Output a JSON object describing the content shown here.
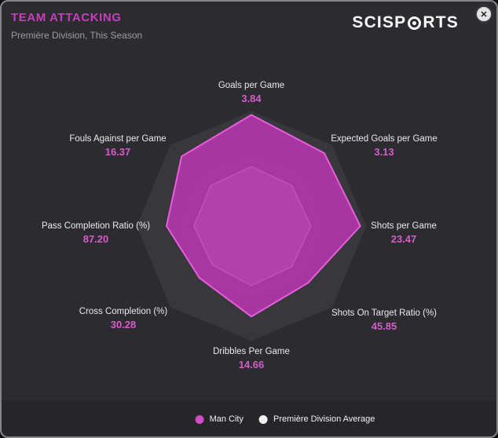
{
  "header": {
    "title": "TEAM ATTACKING",
    "subtitle": "Première Division, This Season",
    "logo_left": "SCISP",
    "logo_right": "RTS",
    "close_glyph": "✕"
  },
  "chart_data": {
    "type": "radar",
    "title": "TEAM ATTACKING",
    "subtitle": "Première Division, This Season",
    "axes": [
      "Goals per Game",
      "Expected Goals per Game",
      "Shots per Game",
      "Shots On Target Ratio (%)",
      "Dribbles Per Game",
      "Cross Completion (%)",
      "Pass Completion Ratio (%)",
      "Fouls Against per Game"
    ],
    "values_display": [
      "3.84",
      "3.13",
      "23.47",
      "45.85",
      "14.66",
      "30.28",
      "87.20",
      "16.37"
    ],
    "series": [
      {
        "name": "Man City",
        "values": [
          3.84,
          3.13,
          23.47,
          45.85,
          14.66,
          30.28,
          87.2,
          16.37
        ],
        "norm": [
          0.97,
          0.9,
          0.95,
          0.7,
          0.79,
          0.64,
          0.74,
          0.86
        ],
        "stroke": "#ea5ddd",
        "fill": "rgba(196,54,186,0.80)"
      },
      {
        "name": "Première Division Average",
        "norm": [
          0.52,
          0.5,
          0.52,
          0.5,
          0.52,
          0.48,
          0.5,
          0.5
        ],
        "stroke": "rgba(240,240,246,0.65)",
        "fill": "rgba(224,224,232,0.30)"
      }
    ],
    "rings": [
      {
        "r": 1.0,
        "fill": "#37373c"
      },
      {
        "r": 0.65,
        "fill": "#3e3e44"
      },
      {
        "r": 0.32,
        "fill": "#45454b"
      }
    ],
    "legend_position": "bottom"
  },
  "legend": [
    {
      "label": "Man City",
      "color": "#d24cc7"
    },
    {
      "label": "Première Division Average",
      "color": "#f2f2f2"
    }
  ]
}
